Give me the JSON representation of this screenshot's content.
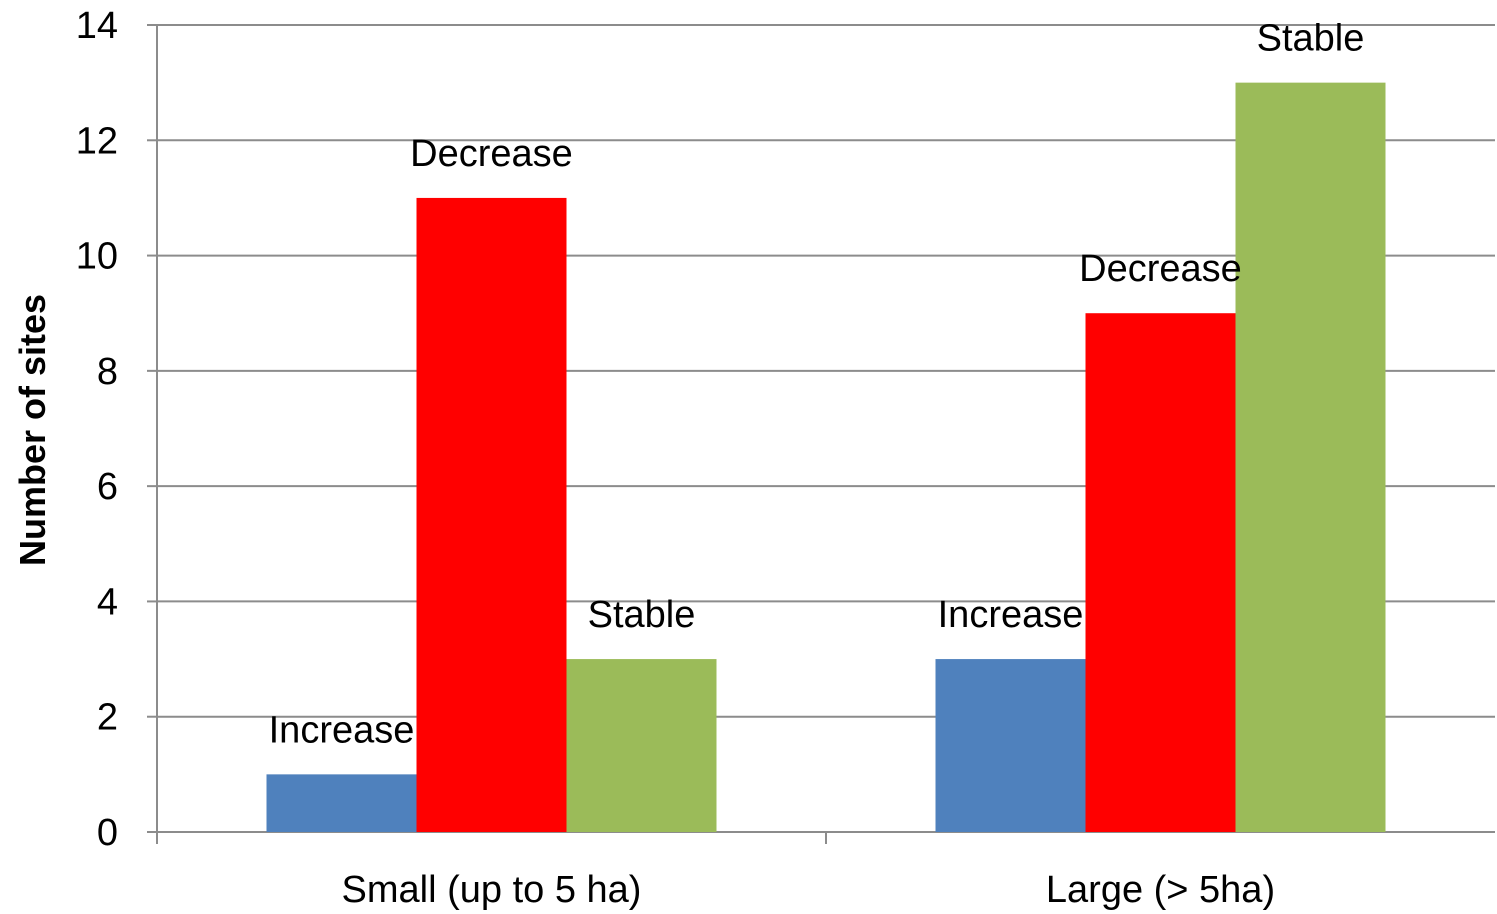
{
  "chart_data": {
    "type": "bar",
    "title": "",
    "xlabel": "",
    "ylabel": "Number of sites",
    "ylim": [
      0,
      14
    ],
    "yticks": [
      0,
      2,
      4,
      6,
      8,
      10,
      12,
      14
    ],
    "grid": "horizontal",
    "categories": [
      "Small (up to 5 ha)",
      "Large (> 5ha)"
    ],
    "series": [
      {
        "label": "Increase",
        "color": "#4f81bd",
        "values": [
          1,
          3
        ]
      },
      {
        "label": "Decrease",
        "color": "#ff0000",
        "values": [
          11,
          9
        ]
      },
      {
        "label": "Stable",
        "color": "#9bbb59",
        "values": [
          3,
          13
        ]
      }
    ]
  }
}
